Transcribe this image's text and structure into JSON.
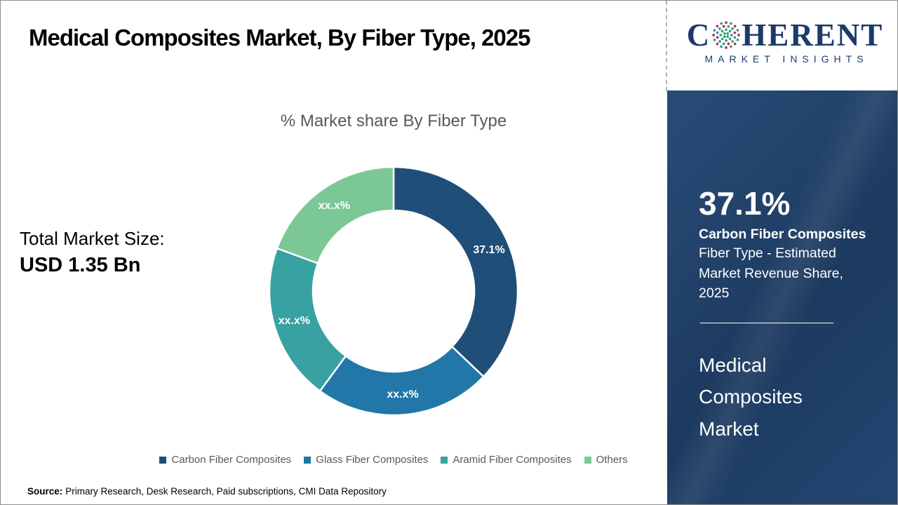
{
  "header": {
    "title": "Medical Composites Market, By Fiber Type, 2025",
    "logo": {
      "part1": "C",
      "part2": "HERENT",
      "subtitle": "MARKET INSIGHTS"
    }
  },
  "main": {
    "chart_title": "% Market share By Fiber Type",
    "total_market_size_label": "Total Market Size:",
    "total_market_size_value": "USD 1.35 Bn",
    "source_label": "Source:",
    "source_text": "Primary Research, Desk Research, Paid subscriptions, CMI Data Repository"
  },
  "chart_data": {
    "type": "pie",
    "subtype": "donut",
    "title": "% Market share By Fiber Type",
    "categories": [
      "Carbon Fiber Composites",
      "Glass Fiber Composites",
      "Aramid Fiber Composites",
      "Others"
    ],
    "values": [
      37.1,
      23.0,
      20.5,
      19.4
    ],
    "labels": [
      "37.1%",
      "xx.x%",
      "xx.x%",
      "xx.x%"
    ],
    "note": "Only the 37.1% slice is labeled numerically; remaining slices are masked as xx.x% and their values are estimated from arc angles.",
    "colors": [
      "#1F4E79",
      "#2077A8",
      "#38A1A1",
      "#7BC896"
    ],
    "start_angle_deg": 0,
    "direction": "clockwise",
    "inner_radius_ratio": 0.65,
    "legend_position": "bottom"
  },
  "sidebar": {
    "stat_value": "37.1%",
    "stat_name": "Carbon Fiber Composites",
    "stat_desc": "Fiber Type - Estimated Market Revenue Share, 2025",
    "title": "Medical Composites Market",
    "background_color": "#203F68"
  }
}
